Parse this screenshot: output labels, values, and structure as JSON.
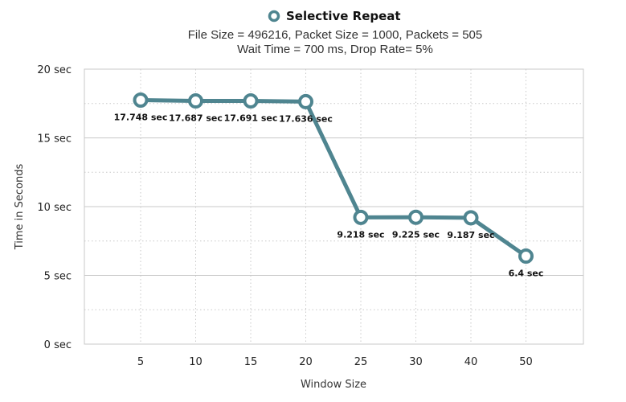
{
  "colors": {
    "series": "#4f8590",
    "marker_fill": "#ffffff",
    "grid": "#c8c8c8",
    "frame": "#c8c8c8"
  },
  "chart_data": {
    "type": "line",
    "legend": "Selective Repeat",
    "legend_position": "top",
    "subtitle_line1": "File Size = 496216,  Packet Size = 1000,  Packets = 505",
    "subtitle_line2": "Wait Time = 700 ms,  Drop Rate= 5%",
    "xlabel": "Window Size",
    "ylabel": "Time in Seconds",
    "categories": [
      "5",
      "10",
      "15",
      "20",
      "25",
      "30",
      "40",
      "50"
    ],
    "series": [
      {
        "name": "Selective Repeat",
        "values": [
          17.748,
          17.687,
          17.691,
          17.636,
          9.218,
          9.225,
          9.187,
          6.4
        ],
        "labels": [
          "17.748 sec",
          "17.687 sec",
          "17.691 sec",
          "17.636 sec",
          "9.218 sec",
          "9.225 sec",
          "9.187 sec",
          "6.4 sec"
        ]
      }
    ],
    "ylim": [
      0,
      20
    ],
    "yticks": [
      0,
      5,
      10,
      15,
      20
    ],
    "ytick_labels": [
      "0 sec",
      "5 sec",
      "10 sec",
      "15 sec",
      "20 sec"
    ],
    "grid": true
  }
}
